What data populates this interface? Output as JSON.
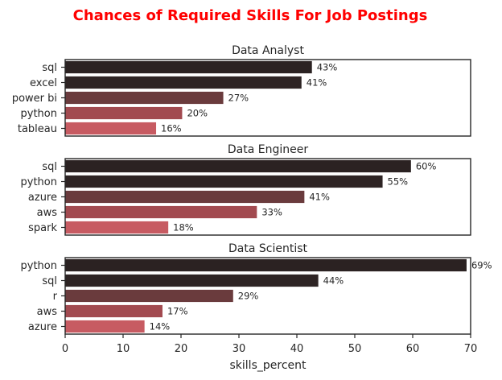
{
  "title": "Chances of Required Skills For Job Postings",
  "title_color": "#ff0000",
  "palette": [
    "#2b2222",
    "#2e2424",
    "#6a3b3d",
    "#a24a50",
    "#c75b62"
  ],
  "chart_data": [
    {
      "type": "bar",
      "orientation": "horizontal",
      "title": "Data Analyst",
      "categories": [
        "sql",
        "excel",
        "power bi",
        "python",
        "tableau"
      ],
      "values": [
        42.6,
        40.8,
        27.3,
        20.2,
        15.7
      ],
      "labels": [
        "43%",
        "41%",
        "27%",
        "20%",
        "16%"
      ],
      "xlim": [
        0,
        70
      ]
    },
    {
      "type": "bar",
      "orientation": "horizontal",
      "title": "Data Engineer",
      "categories": [
        "sql",
        "python",
        "azure",
        "aws",
        "spark"
      ],
      "values": [
        59.7,
        54.8,
        41.3,
        33.1,
        17.8
      ],
      "labels": [
        "60%",
        "55%",
        "41%",
        "33%",
        "18%"
      ],
      "xlim": [
        0,
        70
      ]
    },
    {
      "type": "bar",
      "orientation": "horizontal",
      "title": "Data Scientist",
      "categories": [
        "python",
        "sql",
        "r",
        "aws",
        "azure"
      ],
      "values": [
        69.3,
        43.7,
        29.0,
        16.8,
        13.7
      ],
      "labels": [
        "69%",
        "44%",
        "29%",
        "17%",
        "14%"
      ],
      "xlim": [
        0,
        70
      ],
      "xticks": [
        "0",
        "10",
        "20",
        "30",
        "40",
        "50",
        "60",
        "70"
      ],
      "xlabel": "skills_percent"
    }
  ]
}
